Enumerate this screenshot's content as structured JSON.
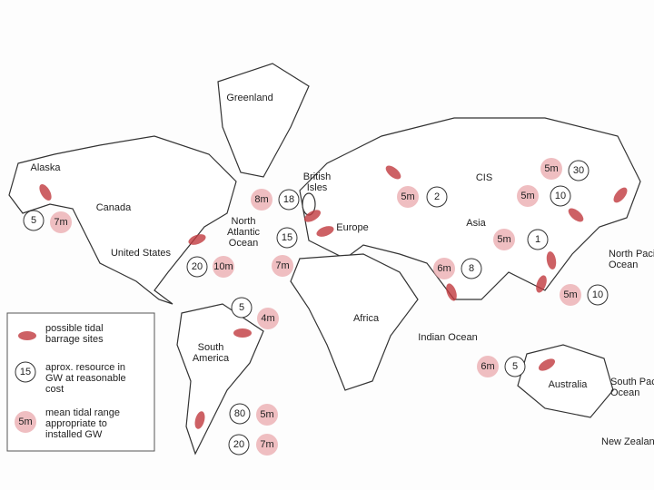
{
  "labels": [
    {
      "lines": [
        "Greenland"
      ]
    },
    {
      "lines": [
        "Alaska"
      ]
    },
    {
      "lines": [
        "Canada"
      ]
    },
    {
      "lines": [
        "United States"
      ]
    },
    {
      "lines": [
        "British",
        "Isles"
      ]
    },
    {
      "lines": [
        "North",
        "Atlantic",
        "Ocean"
      ]
    },
    {
      "lines": [
        "Europe"
      ]
    },
    {
      "lines": [
        "CIS"
      ]
    },
    {
      "lines": [
        "Asia"
      ]
    },
    {
      "lines": [
        "Africa"
      ]
    },
    {
      "lines": [
        "Indian Ocean"
      ]
    },
    {
      "lines": [
        "South",
        "America"
      ]
    },
    {
      "lines": [
        "Australia"
      ]
    },
    {
      "lines": [
        "North Pacific",
        "Ocean"
      ]
    },
    {
      "lines": [
        "South Pacific",
        "Ocean"
      ]
    },
    {
      "lines": [
        "New Zealand"
      ]
    }
  ],
  "sites": [
    {
      "resource": 5,
      "range": "7m"
    },
    {
      "resource": 20,
      "range": "10m"
    },
    {
      "resource": 18,
      "range": "8m"
    },
    {
      "resource": 15,
      "range": "7m"
    },
    {
      "resource": 2,
      "range": "5m"
    },
    {
      "resource": 30,
      "range": "5m"
    },
    {
      "resource": 10,
      "range": "5m"
    },
    {
      "resource": 1,
      "range": "5m"
    },
    {
      "resource": 8,
      "range": "6m"
    },
    {
      "resource": 10,
      "range": "5m"
    },
    {
      "resource": 5,
      "range": "4m"
    },
    {
      "resource": 5,
      "range": "6m"
    },
    {
      "resource": 80,
      "range": "5m"
    },
    {
      "resource": 20,
      "range": "7m"
    }
  ],
  "legend": {
    "barrage": [
      "possible tidal",
      "barrage sites"
    ],
    "resource_example": 15,
    "resource": [
      "aprox. resource in",
      "GW at reasonable",
      "cost"
    ],
    "range_example": "5m",
    "range": [
      "mean tidal range",
      "appropriate to",
      "installed GW"
    ]
  }
}
